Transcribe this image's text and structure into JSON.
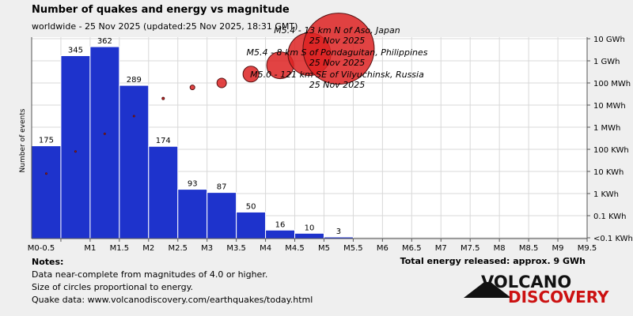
{
  "chart_data": {
    "type": "bar",
    "title": "Number of quakes and energy vs magnitude",
    "subtitle": "worldwide - 25 Nov 2025 (updated:25 Nov 2025, 18:31 GMT)",
    "ylabel": "Number of events",
    "x_ticks": [
      "M0-0.5",
      "M1",
      "M1.5",
      "M2",
      "M2.5",
      "M3",
      "M3.5",
      "M4",
      "M4.5",
      "M5",
      "M5.5",
      "M6",
      "M6.5",
      "M7",
      "M7.5",
      "M8",
      "M8.5",
      "M9",
      "M9.5"
    ],
    "bins_from": [
      0.0,
      0.5,
      1.0,
      1.5,
      2.0,
      2.5,
      3.0,
      3.5,
      4.0,
      4.5,
      5.0
    ],
    "counts": [
      175,
      345,
      362,
      289,
      174,
      93,
      87,
      50,
      16,
      10,
      3
    ],
    "count_ylim": [
      0,
      380
    ],
    "energy_axis_labels": [
      "10 GWh",
      "1 GWh",
      "100 MWh",
      "10 MWh",
      "1 MWh",
      "100 KWh",
      "10 KWh",
      "1 KWh",
      "0.1 KWh",
      "<0.1 KWh"
    ],
    "energy_points": [
      {
        "mag": 0.25,
        "level": 2.9,
        "size": 1
      },
      {
        "mag": 0.75,
        "level": 3.9,
        "size": 1
      },
      {
        "mag": 1.25,
        "level": 4.7,
        "size": 1
      },
      {
        "mag": 1.75,
        "level": 5.5,
        "size": 1
      },
      {
        "mag": 2.25,
        "level": 6.3,
        "size": 1.5
      },
      {
        "mag": 2.75,
        "level": 6.8,
        "size": 3
      },
      {
        "mag": 3.25,
        "level": 7.0,
        "size": 6
      },
      {
        "mag": 3.75,
        "level": 7.4,
        "size": 10
      },
      {
        "mag": 4.25,
        "level": 7.8,
        "size": 17
      },
      {
        "mag": 4.75,
        "level": 8.3,
        "size": 27
      },
      {
        "mag": 5.25,
        "level": 8.55,
        "size": 45
      }
    ],
    "annotations": [
      {
        "line1": "M5.4 - 13 km N of Aso, Japan",
        "line2": "25 Nov 2025"
      },
      {
        "line1": "M5.4 - 8 km S of Pondaguitan, Philippines",
        "line2": "25 Nov 2025"
      },
      {
        "line1": "M5.0 - 121 km SE of Vilyuchinsk, Russia",
        "line2": "25 Nov 2025"
      }
    ],
    "bar_color": "#1e33cc",
    "circle_color": "#dd2222"
  },
  "notes": {
    "heading": "Notes:",
    "lines": [
      "Data near-complete from magnitudes of 4.0 or higher.",
      "Size of circles proportional to energy.",
      "Quake data: www.volcanodiscovery.com/earthquakes/today.html"
    ]
  },
  "total_energy": "Total energy released: approx. 9 GWh",
  "logo": {
    "line1": "VOLCANO",
    "line2": "DISCOVERY"
  }
}
